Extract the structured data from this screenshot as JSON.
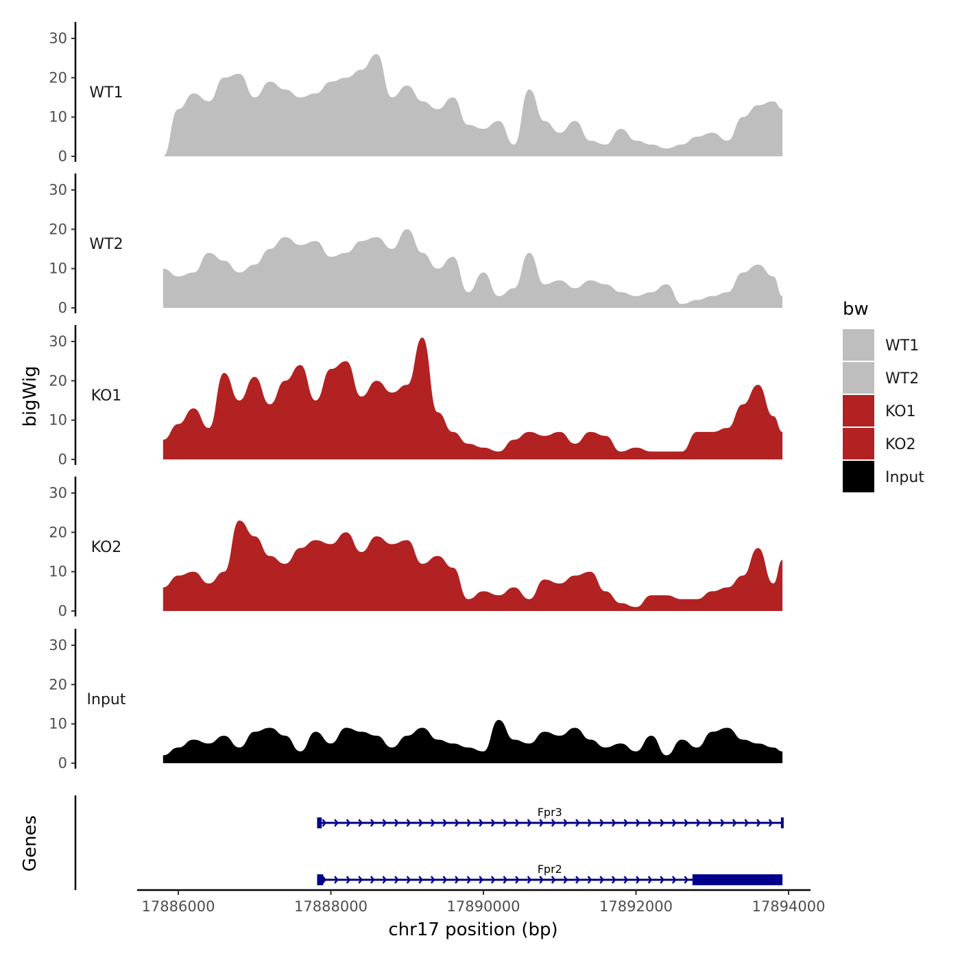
{
  "chart_data": {
    "type": "area",
    "region": {
      "chrom": "chr17",
      "start": 17885800,
      "end": 17893920
    },
    "xlabel": "chr17 position (bp)",
    "x_ticks": [
      17886000,
      17888000,
      17890000,
      17892000,
      17894000
    ],
    "x_tick_labels": [
      "17886000",
      "17888000",
      "17890000",
      "17892000",
      "17894000"
    ],
    "ylabel": "bigWig",
    "ylim": [
      0,
      34
    ],
    "y_ticks": [
      0,
      10,
      20,
      30
    ],
    "y_tick_labels": [
      "0",
      "10",
      "20",
      "30"
    ],
    "legend": {
      "title": "bw",
      "entries": [
        {
          "name": "WT1",
          "color": "#bebebe"
        },
        {
          "name": "WT2",
          "color": "#bebebe"
        },
        {
          "name": "KO1",
          "color": "#b22222"
        },
        {
          "name": "KO2",
          "color": "#b22222"
        },
        {
          "name": "Input",
          "color": "#000000"
        }
      ]
    },
    "series": [
      {
        "name": "WT1",
        "color": "#bebebe",
        "x": [
          17885800,
          17886000,
          17886200,
          17886400,
          17886600,
          17886800,
          17887000,
          17887200,
          17887400,
          17887600,
          17887800,
          17888000,
          17888200,
          17888400,
          17888600,
          17888800,
          17889000,
          17889200,
          17889400,
          17889600,
          17889800,
          17890000,
          17890200,
          17890400,
          17890600,
          17890800,
          17891000,
          17891200,
          17891400,
          17891600,
          17891800,
          17892000,
          17892200,
          17892400,
          17892600,
          17892800,
          17893000,
          17893200,
          17893400,
          17893600,
          17893800,
          17893920
        ],
        "values": [
          0,
          12,
          16,
          14,
          20,
          21,
          15,
          19,
          17,
          15,
          16,
          19,
          20,
          22,
          26,
          15,
          18,
          14,
          12,
          15,
          8,
          7,
          9,
          3,
          17,
          9,
          6,
          9,
          4,
          3,
          7,
          4,
          3,
          2,
          3,
          5,
          6,
          4,
          10,
          13,
          14,
          12
        ]
      },
      {
        "name": "WT2",
        "color": "#bebebe",
        "x": [
          17885800,
          17886000,
          17886200,
          17886400,
          17886600,
          17886800,
          17887000,
          17887200,
          17887400,
          17887600,
          17887800,
          17888000,
          17888200,
          17888400,
          17888600,
          17888800,
          17889000,
          17889200,
          17889400,
          17889600,
          17889800,
          17890000,
          17890200,
          17890400,
          17890600,
          17890800,
          17891000,
          17891200,
          17891400,
          17891600,
          17891800,
          17892000,
          17892200,
          17892400,
          17892600,
          17892800,
          17893000,
          17893200,
          17893400,
          17893600,
          17893800,
          17893920
        ],
        "values": [
          10,
          8,
          9,
          14,
          12,
          9,
          11,
          15,
          18,
          16,
          17,
          13,
          14,
          17,
          18,
          15,
          20,
          14,
          10,
          13,
          4,
          9,
          3,
          5,
          14,
          6,
          7,
          5,
          7,
          6,
          4,
          3,
          4,
          6,
          1,
          2,
          3,
          4,
          9,
          11,
          8,
          3
        ]
      },
      {
        "name": "KO1",
        "color": "#b22222",
        "x": [
          17885800,
          17886000,
          17886200,
          17886400,
          17886600,
          17886800,
          17887000,
          17887200,
          17887400,
          17887600,
          17887800,
          17888000,
          17888200,
          17888400,
          17888600,
          17888800,
          17889000,
          17889200,
          17889400,
          17889600,
          17889800,
          17890000,
          17890200,
          17890400,
          17890600,
          17890800,
          17891000,
          17891200,
          17891400,
          17891600,
          17891800,
          17892000,
          17892200,
          17892400,
          17892600,
          17892800,
          17893000,
          17893200,
          17893400,
          17893600,
          17893800,
          17893920
        ],
        "values": [
          5,
          9,
          13,
          8,
          22,
          15,
          21,
          14,
          20,
          24,
          15,
          23,
          25,
          16,
          20,
          17,
          19,
          31,
          12,
          7,
          4,
          3,
          2,
          5,
          7,
          6,
          7,
          4,
          7,
          6,
          2,
          3,
          2,
          2,
          2,
          7,
          7,
          8,
          14,
          19,
          11,
          7
        ]
      },
      {
        "name": "KO2",
        "color": "#b22222",
        "x": [
          17885800,
          17886000,
          17886200,
          17886400,
          17886600,
          17886800,
          17887000,
          17887200,
          17887400,
          17887600,
          17887800,
          17888000,
          17888200,
          17888400,
          17888600,
          17888800,
          17889000,
          17889200,
          17889400,
          17889600,
          17889800,
          17890000,
          17890200,
          17890400,
          17890600,
          17890800,
          17891000,
          17891200,
          17891400,
          17891600,
          17891800,
          17892000,
          17892200,
          17892400,
          17892600,
          17892800,
          17893000,
          17893200,
          17893400,
          17893600,
          17893800,
          17893920
        ],
        "values": [
          6,
          9,
          10,
          7,
          10,
          23,
          19,
          14,
          12,
          16,
          18,
          17,
          20,
          15,
          19,
          17,
          18,
          12,
          14,
          11,
          3,
          5,
          4,
          6,
          3,
          8,
          7,
          9,
          10,
          5,
          2,
          1,
          4,
          4,
          3,
          3,
          5,
          6,
          9,
          16,
          7,
          13
        ]
      },
      {
        "name": "Input",
        "color": "#000000",
        "x": [
          17885800,
          17886000,
          17886200,
          17886400,
          17886600,
          17886800,
          17887000,
          17887200,
          17887400,
          17887600,
          17887800,
          17888000,
          17888200,
          17888400,
          17888600,
          17888800,
          17889000,
          17889200,
          17889400,
          17889600,
          17889800,
          17890000,
          17890200,
          17890400,
          17890600,
          17890800,
          17891000,
          17891200,
          17891400,
          17891600,
          17891800,
          17892000,
          17892200,
          17892400,
          17892600,
          17892800,
          17893000,
          17893200,
          17893400,
          17893600,
          17893800,
          17893920
        ],
        "values": [
          2,
          4,
          6,
          5,
          7,
          4,
          8,
          9,
          7,
          3,
          8,
          5,
          9,
          8,
          7,
          4,
          7,
          9,
          6,
          5,
          4,
          3,
          11,
          6,
          5,
          8,
          7,
          9,
          6,
          4,
          5,
          3,
          7,
          2,
          6,
          4,
          8,
          9,
          6,
          5,
          4,
          3
        ]
      }
    ],
    "genes_track": {
      "title": "Genes",
      "color": "#00008b",
      "genes": [
        {
          "name": "Fpr3",
          "start": 17887820,
          "end": 17893920,
          "strand": "+",
          "exons": [
            [
              17887820,
              17887880
            ],
            [
              17893900,
              17893920
            ]
          ]
        },
        {
          "name": "Fpr2",
          "start": 17887820,
          "end": 17893920,
          "strand": "+",
          "exons": [
            [
              17887820,
              17887900
            ],
            [
              17892740,
              17893920
            ]
          ]
        }
      ]
    }
  }
}
